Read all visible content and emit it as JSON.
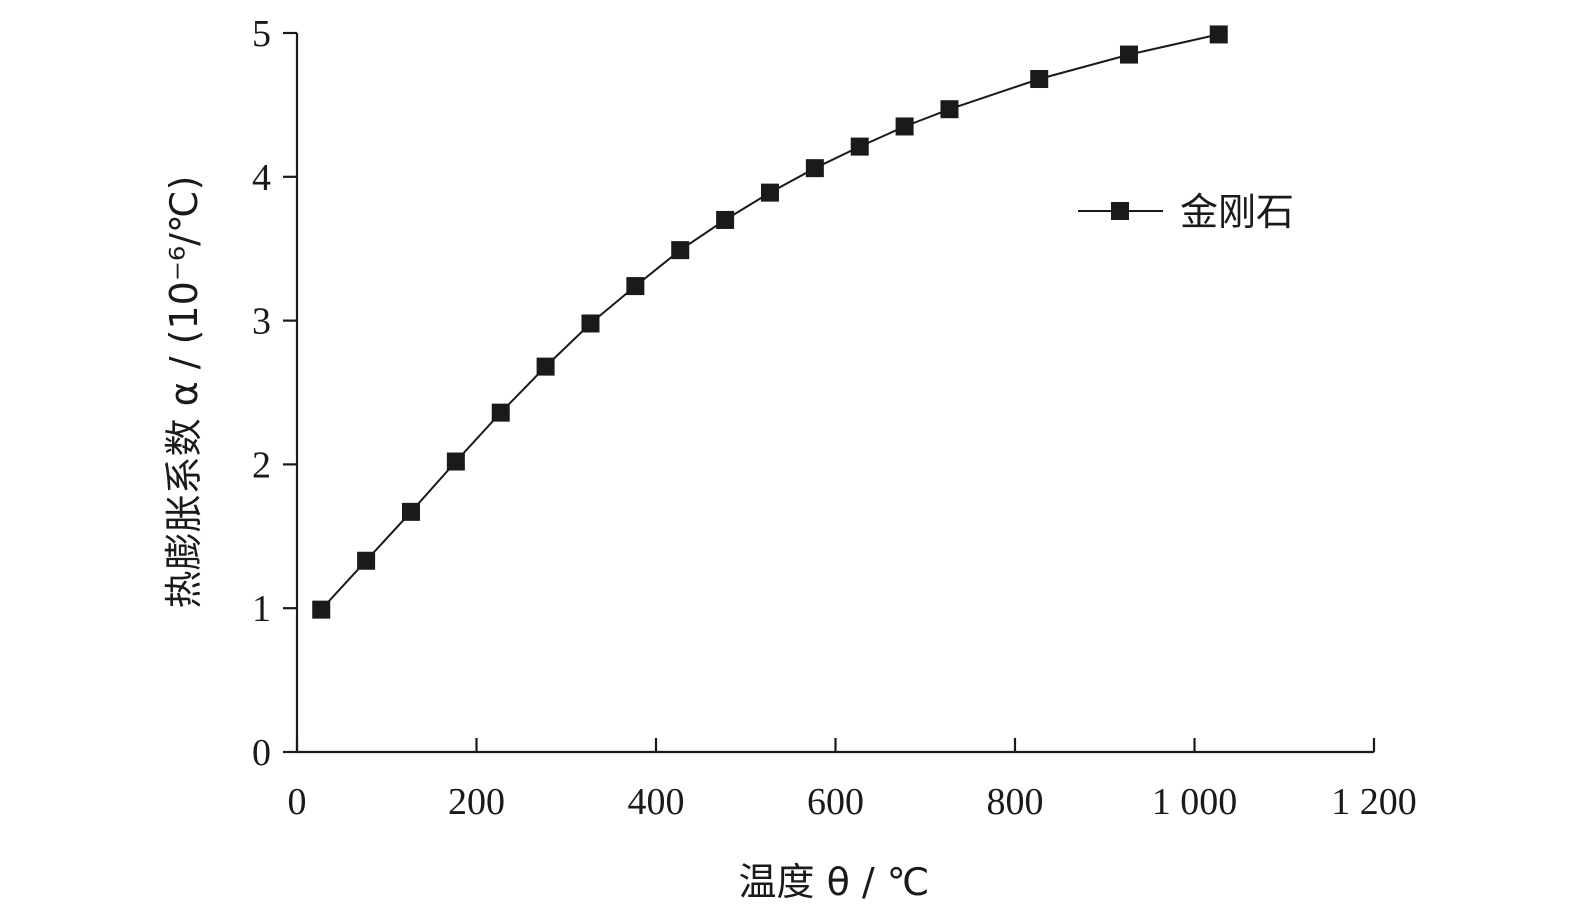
{
  "chart_data": {
    "type": "line",
    "title": "",
    "xlabel": "温度 θ / ℃",
    "ylabel": "热膨胀系数 α / (10⁻⁶/℃)",
    "xlim": [
      0,
      1200
    ],
    "ylim": [
      0,
      5
    ],
    "x_ticks": [
      0,
      200,
      400,
      600,
      800,
      1000,
      1200
    ],
    "x_tick_labels": [
      "0",
      "200",
      "400",
      "600",
      "800",
      "1 000",
      "1 200"
    ],
    "y_ticks": [
      0,
      1,
      2,
      3,
      4,
      5
    ],
    "y_tick_labels": [
      "0",
      "1",
      "2",
      "3",
      "4",
      "5"
    ],
    "grid": false,
    "legend_position": "top-right",
    "series": [
      {
        "name": "金刚石",
        "color": "#1a1a1a",
        "marker": "square",
        "x": [
          27,
          77,
          127,
          177,
          227,
          277,
          327,
          377,
          427,
          477,
          527,
          577,
          627,
          677,
          727,
          827,
          927,
          1027
        ],
        "y": [
          0.99,
          1.33,
          1.67,
          2.02,
          2.36,
          2.68,
          2.98,
          3.24,
          3.49,
          3.7,
          3.89,
          4.06,
          4.21,
          4.35,
          4.47,
          4.68,
          4.85,
          4.99
        ]
      }
    ]
  }
}
